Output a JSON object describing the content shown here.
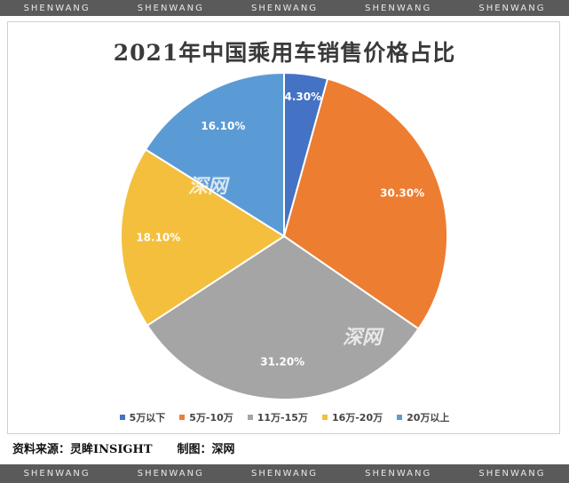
{
  "watermark_strip": [
    "SHENWANG",
    "SHENWANG",
    "SHENWANG",
    "SHENWANG",
    "SHENWANG"
  ],
  "watermark_logo": "深网",
  "footer": {
    "source": "资料来源：灵眸INSIGHT",
    "made_by": "制图：深网"
  },
  "chart_data": {
    "type": "pie",
    "title": "2021年中国乘用车销售价格占比",
    "categories": [
      "5万以下",
      "5万-10万",
      "11万-15万",
      "16万-20万",
      "20万以上"
    ],
    "values": [
      4.3,
      30.3,
      31.2,
      18.1,
      16.1
    ],
    "labels": [
      "4.30%",
      "30.30%",
      "31.20%",
      "18.10%",
      "16.10%"
    ],
    "colors": [
      "#4472c4",
      "#ed7d31",
      "#a5a5a5",
      "#f4bf3c",
      "#5b9bd5"
    ],
    "legend_position": "bottom"
  }
}
